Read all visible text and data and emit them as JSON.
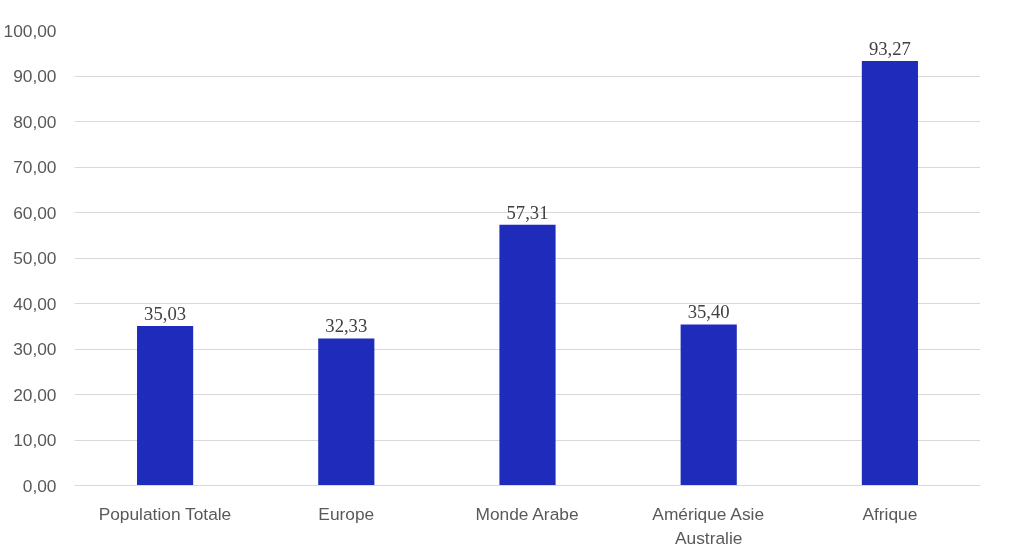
{
  "chart_data": {
    "type": "bar",
    "categories": [
      "Population Totale",
      "Europe",
      "Monde Arabe",
      "Amérique Asie Australie",
      "Afrique"
    ],
    "values": [
      35.03,
      32.33,
      57.31,
      35.4,
      93.27
    ],
    "value_labels": [
      "35,03",
      "32,33",
      "57,31",
      "35,40",
      "93,27"
    ],
    "color": "#1f2bbb",
    "ylim": [
      0,
      100
    ],
    "yticks": [
      {
        "value": 0,
        "label": "0,00"
      },
      {
        "value": 10,
        "label": "10,00"
      },
      {
        "value": 20,
        "label": "20,00"
      },
      {
        "value": 30,
        "label": "30,00"
      },
      {
        "value": 40,
        "label": "40,00"
      },
      {
        "value": 50,
        "label": "50,00"
      },
      {
        "value": 60,
        "label": "60,00"
      },
      {
        "value": 70,
        "label": "70,00"
      },
      {
        "value": 80,
        "label": "80,00"
      },
      {
        "value": 90,
        "label": "90,00"
      },
      {
        "value": 100,
        "label": "100,00"
      }
    ],
    "grid": "y"
  }
}
